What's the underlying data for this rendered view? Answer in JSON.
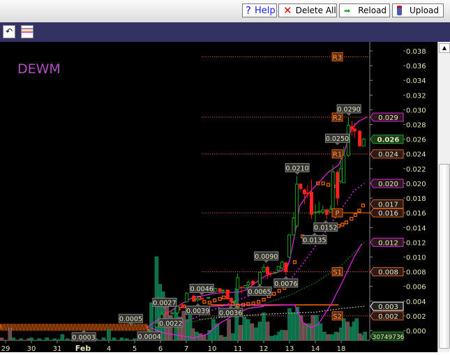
{
  "toolbar": {
    "help_label": "Help",
    "delete_all_label": "Delete All",
    "reload_label": "Reload",
    "upload_label": "Upload"
  },
  "chart_data": {
    "type": "candlestick",
    "symbol": "DEWM",
    "ylim": [
      0,
      0.039
    ],
    "y_ticks": [
      "0.000",
      "0.002",
      "0.004",
      "0.006",
      "0.008",
      "0.010",
      "0.012",
      "0.014",
      "0.016",
      "0.018",
      "0.020",
      "0.022",
      "0.024",
      "0.026",
      "0.028",
      "0.030",
      "0.032",
      "0.034",
      "0.036",
      "0.038"
    ],
    "x_ticks": [
      "29",
      "30",
      "31",
      "Feb",
      "4",
      "5",
      "6",
      "7",
      "10",
      "11",
      "12",
      "13",
      "14",
      "18"
    ],
    "candles": [
      [
        5.85,
        0.0005,
        0.0012,
        0.0004,
        0.001
      ],
      [
        6.05,
        0.001,
        0.0026,
        0.0009,
        0.0022
      ],
      [
        6.25,
        0.0025,
        0.0027,
        0.0021,
        0.0023
      ],
      [
        6.45,
        0.0023,
        0.0027,
        0.0022,
        0.0024
      ],
      [
        6.65,
        0.0024,
        0.0034,
        0.0022,
        0.0033
      ],
      [
        6.85,
        0.0034,
        0.0036,
        0.003,
        0.0031
      ],
      [
        7.02,
        0.0039,
        0.0052,
        0.0038,
        0.0051
      ],
      [
        7.29,
        0.0047,
        0.0049,
        0.004,
        0.0041
      ],
      [
        7.44,
        0.0042,
        0.0046,
        0.0039,
        0.0044
      ],
      [
        7.61,
        0.0044,
        0.0045,
        0.0042,
        0.0043
      ],
      [
        7.86,
        0.0044,
        0.0046,
        0.0043,
        0.0045
      ],
      [
        8.13,
        0.0053,
        0.0058,
        0.005,
        0.0057
      ],
      [
        8.3,
        0.0057,
        0.0058,
        0.0052,
        0.0053
      ],
      [
        8.42,
        0.0054,
        0.0056,
        0.005,
        0.0055
      ],
      [
        8.6,
        0.0054,
        0.0056,
        0.0042,
        0.0043
      ],
      [
        8.74,
        0.0044,
        0.0045,
        0.0036,
        0.0039
      ],
      [
        8.87,
        0.0039,
        0.0041,
        0.0038,
        0.004
      ],
      [
        8.99,
        0.0056,
        0.0078,
        0.0055,
        0.0072
      ],
      [
        9.14,
        0.0059,
        0.006,
        0.005,
        0.0058
      ],
      [
        9.29,
        0.0058,
        0.0062,
        0.0056,
        0.0061
      ],
      [
        9.41,
        0.0062,
        0.0068,
        0.006,
        0.0066
      ],
      [
        9.58,
        0.0067,
        0.0069,
        0.0062,
        0.0063
      ],
      [
        9.85,
        0.0063,
        0.008,
        0.0062,
        0.0079
      ],
      [
        10.0,
        0.008,
        0.009,
        0.0079,
        0.0086
      ],
      [
        10.15,
        0.0086,
        0.0088,
        0.007,
        0.0077
      ],
      [
        10.27,
        0.0078,
        0.0079,
        0.0073,
        0.0077
      ],
      [
        10.44,
        0.0078,
        0.008,
        0.0077,
        0.0079
      ],
      [
        10.57,
        0.0082,
        0.0088,
        0.008,
        0.0087
      ],
      [
        10.71,
        0.0085,
        0.0095,
        0.0083,
        0.0093
      ],
      [
        10.86,
        0.0092,
        0.0093,
        0.0076,
        0.008
      ],
      [
        10.99,
        0.01,
        0.0131,
        0.0099,
        0.013
      ],
      [
        11.16,
        0.013,
        0.016,
        0.0129,
        0.0153
      ],
      [
        11.28,
        0.0142,
        0.021,
        0.014,
        0.0199
      ],
      [
        11.43,
        0.0199,
        0.02,
        0.019,
        0.0193
      ],
      [
        11.58,
        0.0191,
        0.0193,
        0.0172,
        0.0186
      ],
      [
        11.7,
        0.0187,
        0.0198,
        0.018,
        0.0186
      ],
      [
        11.85,
        0.0188,
        0.0205,
        0.0152,
        0.0158
      ],
      [
        12.0,
        0.016,
        0.0172,
        0.0135,
        0.0161
      ],
      [
        12.14,
        0.0161,
        0.0175,
        0.0158,
        0.0162
      ],
      [
        12.29,
        0.0161,
        0.017,
        0.0158,
        0.0164
      ],
      [
        12.44,
        0.0164,
        0.0165,
        0.0152,
        0.0158
      ],
      [
        12.59,
        0.0161,
        0.017,
        0.016,
        0.0165
      ],
      [
        12.68,
        0.0164,
        0.0225,
        0.0163,
        0.0216
      ],
      [
        12.86,
        0.0215,
        0.0218,
        0.017,
        0.018
      ],
      [
        12.98,
        0.0203,
        0.0232,
        0.02,
        0.022
      ],
      [
        13.1,
        0.0201,
        0.025,
        0.02,
        0.0238
      ],
      [
        13.28,
        0.0238,
        0.029,
        0.0236,
        0.0279
      ],
      [
        13.42,
        0.0277,
        0.0285,
        0.0265,
        0.0274
      ],
      [
        13.52,
        0.0274,
        0.0282,
        0.0262,
        0.0271
      ],
      [
        13.72,
        0.0271,
        0.0272,
        0.025,
        0.0251
      ],
      [
        13.87,
        0.0251,
        0.0262,
        0.025,
        0.026
      ]
    ],
    "volume_relative": [
      [
        -0.15,
        3,
        0
      ],
      [
        0.17,
        15,
        0
      ],
      [
        0.3,
        3,
        1
      ],
      [
        0.6,
        2,
        1
      ],
      [
        0.9,
        2,
        0
      ],
      [
        1.0,
        3,
        1
      ],
      [
        1.3,
        2,
        1
      ],
      [
        1.6,
        3,
        1
      ],
      [
        1.9,
        2,
        1
      ],
      [
        2.1,
        1,
        1
      ],
      [
        2.2,
        7,
        1
      ],
      [
        2.4,
        2,
        1
      ],
      [
        2.7,
        2,
        1
      ],
      [
        2.9,
        3,
        0
      ],
      [
        3.0,
        3,
        1
      ],
      [
        3.2,
        2,
        1
      ],
      [
        3.5,
        2,
        1
      ],
      [
        3.8,
        3,
        1
      ],
      [
        4.0,
        13,
        1
      ],
      [
        4.2,
        3,
        1
      ],
      [
        4.5,
        3,
        1
      ],
      [
        4.7,
        2,
        1
      ],
      [
        5.0,
        2,
        1
      ],
      [
        5.4,
        2,
        0
      ],
      [
        5.65,
        45,
        1
      ],
      [
        5.85,
        100,
        1
      ],
      [
        5.98,
        67,
        1
      ],
      [
        6.1,
        58,
        1
      ],
      [
        6.25,
        40,
        0
      ],
      [
        6.4,
        30,
        0
      ],
      [
        6.6,
        38,
        1
      ],
      [
        6.75,
        28,
        0
      ],
      [
        6.9,
        35,
        0
      ],
      [
        7.05,
        25,
        1
      ],
      [
        7.15,
        30,
        1
      ],
      [
        7.25,
        14,
        0
      ],
      [
        7.4,
        10,
        1
      ],
      [
        7.55,
        8,
        0
      ],
      [
        7.7,
        6,
        0
      ],
      [
        7.9,
        12,
        1
      ],
      [
        8.05,
        25,
        1
      ],
      [
        8.2,
        20,
        1
      ],
      [
        8.35,
        6,
        0
      ],
      [
        8.5,
        4,
        1
      ],
      [
        8.65,
        25,
        0
      ],
      [
        8.8,
        8,
        1
      ],
      [
        8.95,
        62,
        1
      ],
      [
        9.1,
        18,
        0
      ],
      [
        9.25,
        28,
        1
      ],
      [
        9.4,
        25,
        1
      ],
      [
        9.55,
        20,
        0
      ],
      [
        9.7,
        15,
        1
      ],
      [
        9.85,
        22,
        1
      ],
      [
        10.0,
        33,
        1
      ],
      [
        10.15,
        22,
        0
      ],
      [
        10.3,
        5,
        1
      ],
      [
        10.45,
        6,
        1
      ],
      [
        10.6,
        10,
        1
      ],
      [
        10.7,
        12,
        1
      ],
      [
        10.85,
        12,
        0
      ],
      [
        11.0,
        38,
        1
      ],
      [
        11.15,
        33,
        1
      ],
      [
        11.3,
        40,
        1
      ],
      [
        11.45,
        30,
        0
      ],
      [
        11.6,
        20,
        0
      ],
      [
        11.75,
        20,
        1
      ],
      [
        11.9,
        30,
        0
      ],
      [
        12.05,
        30,
        1
      ],
      [
        12.2,
        20,
        1
      ],
      [
        12.35,
        10,
        1
      ],
      [
        12.5,
        7,
        0
      ],
      [
        12.65,
        7,
        1
      ],
      [
        12.8,
        10,
        1
      ],
      [
        12.92,
        9,
        0
      ],
      [
        13.0,
        15,
        1
      ],
      [
        13.1,
        26,
        1
      ],
      [
        13.25,
        22,
        0
      ],
      [
        13.38,
        16,
        1
      ],
      [
        13.5,
        22,
        1
      ],
      [
        13.6,
        26,
        1
      ],
      [
        13.72,
        8,
        0
      ],
      [
        13.82,
        6,
        0
      ],
      [
        13.92,
        10,
        1
      ]
    ],
    "volume_label": "30749736",
    "upper_band": [
      [
        5.5,
        0.0005
      ],
      [
        6.2,
        0.0022
      ],
      [
        6.8,
        0.0036
      ],
      [
        7.3,
        0.0046
      ],
      [
        7.6,
        0.0047
      ],
      [
        8.0,
        0.005
      ],
      [
        8.5,
        0.0052
      ],
      [
        9.0,
        0.0052
      ],
      [
        9.3,
        0.0055
      ],
      [
        9.8,
        0.0068
      ],
      [
        10.1,
        0.0075
      ],
      [
        10.6,
        0.008
      ],
      [
        10.9,
        0.0085
      ],
      [
        11.0,
        0.0095
      ],
      [
        11.2,
        0.013
      ],
      [
        11.4,
        0.017
      ],
      [
        11.7,
        0.0185
      ],
      [
        12.1,
        0.02
      ],
      [
        12.5,
        0.0215
      ],
      [
        12.9,
        0.0225
      ],
      [
        13.1,
        0.024
      ],
      [
        13.4,
        0.0275
      ],
      [
        13.7,
        0.0285
      ],
      [
        14.0,
        0.029
      ]
    ],
    "lower_band": [
      [
        5.6,
        0.0004
      ],
      [
        6.1,
        -0.0003
      ],
      [
        6.8,
        -0.0007
      ],
      [
        7.3,
        -0.001
      ],
      [
        7.8,
        -0.0005
      ],
      [
        8.3,
        0.001
      ],
      [
        8.9,
        0.0022
      ],
      [
        9.4,
        0.003
      ],
      [
        10.0,
        0.0033
      ]
    ],
    "oscillator": [
      [
        7.2,
        0.0032
      ],
      [
        8.0,
        0.0033
      ],
      [
        9.0,
        0.0035
      ],
      [
        10.0,
        0.0034
      ],
      [
        11.2,
        0.0035
      ],
      [
        11.5,
        0.0012
      ],
      [
        11.8,
        0.0004
      ],
      [
        12.1,
        0.0008
      ],
      [
        12.6,
        0.0035
      ],
      [
        13.1,
        0.007
      ],
      [
        13.5,
        0.01
      ],
      [
        13.8,
        0.0118
      ]
    ],
    "middle_ma": [
      [
        6.5,
        0.0005
      ],
      [
        7.5,
        0.002
      ],
      [
        8.5,
        0.0035
      ],
      [
        9.5,
        0.0048
      ],
      [
        10.5,
        0.006
      ],
      [
        11.0,
        0.0068
      ],
      [
        11.5,
        0.009
      ],
      [
        12.0,
        0.0115
      ],
      [
        12.5,
        0.014
      ],
      [
        13.0,
        0.0165
      ],
      [
        13.5,
        0.019
      ],
      [
        13.9,
        0.02
      ]
    ],
    "green_ma": [
      [
        7.0,
        0.001
      ],
      [
        8.5,
        0.0022
      ],
      [
        10.0,
        0.0036
      ],
      [
        11.0,
        0.0048
      ],
      [
        12.0,
        0.0065
      ],
      [
        13.0,
        0.0088
      ],
      [
        13.9,
        0.012
      ]
    ],
    "white_ma": [
      [
        7.5,
        0.0015
      ],
      [
        9,
        0.002
      ],
      [
        10.5,
        0.0023
      ],
      [
        12,
        0.0025
      ],
      [
        13,
        0.003
      ],
      [
        13.9,
        0.0033
      ]
    ],
    "sar": [
      [
        6.7,
        0.003
      ],
      [
        6.9,
        0.0033
      ],
      [
        7.3,
        0.0042
      ],
      [
        7.5,
        0.0044
      ],
      [
        7.7,
        0.0039
      ],
      [
        7.9,
        0.0038
      ],
      [
        8.1,
        0.0041
      ],
      [
        8.3,
        0.0043
      ],
      [
        8.45,
        0.0045
      ],
      [
        8.6,
        0.0053
      ],
      [
        8.8,
        0.0036
      ],
      [
        9.0,
        0.0034
      ],
      [
        9.2,
        0.0035
      ],
      [
        9.4,
        0.0036
      ],
      [
        9.6,
        0.0037
      ],
      [
        9.8,
        0.0039
      ],
      [
        10.0,
        0.0042
      ],
      [
        10.2,
        0.0047
      ],
      [
        10.4,
        0.005
      ],
      [
        10.6,
        0.0054
      ],
      [
        10.8,
        0.0058
      ],
      [
        11.0,
        0.0066
      ],
      [
        11.2,
        0.0093
      ],
      [
        11.5,
        0.0128
      ],
      [
        11.85,
        0.0168
      ],
      [
        12.1,
        0.02
      ],
      [
        12.3,
        0.02
      ],
      [
        12.5,
        0.0198
      ],
      [
        12.7,
        0.0196
      ],
      [
        12.75,
        0.014
      ],
      [
        12.9,
        0.0142
      ],
      [
        13.05,
        0.0144
      ],
      [
        13.2,
        0.0147
      ],
      [
        13.4,
        0.0152
      ],
      [
        13.55,
        0.0157
      ],
      [
        13.7,
        0.0163
      ],
      [
        13.85,
        0.017
      ]
    ],
    "pivots": [
      {
        "label": "R3",
        "value": 0.0372
      },
      {
        "label": "R2",
        "value": 0.029
      },
      {
        "label": "R1",
        "value": 0.024
      },
      {
        "label": "P",
        "value": 0.016
      },
      {
        "label": "S1",
        "value": 0.008
      },
      {
        "label": "S2",
        "value": 0.002
      }
    ],
    "callouts": [
      {
        "text": "0.0290",
        "t": 13.3,
        "value": 0.029,
        "pos": "above"
      },
      {
        "text": "0.0250",
        "t": 12.85,
        "value": 0.025,
        "pos": "above"
      },
      {
        "text": "0.0210",
        "t": 11.3,
        "value": 0.021,
        "pos": "above"
      },
      {
        "text": "0.0152",
        "t": 12.4,
        "value": 0.0152,
        "pos": "below"
      },
      {
        "text": "0.0135",
        "t": 11.97,
        "value": 0.0135,
        "pos": "below"
      },
      {
        "text": "0.0090",
        "t": 10.1,
        "value": 0.009,
        "pos": "above"
      },
      {
        "text": "0.0076",
        "t": 10.86,
        "value": 0.0076,
        "pos": "below"
      },
      {
        "text": "0.0065",
        "t": 9.84,
        "value": 0.0065,
        "pos": "below"
      },
      {
        "text": "0.0046",
        "t": 7.6,
        "value": 0.0046,
        "pos": "above"
      },
      {
        "text": "0.0039",
        "t": 7.45,
        "value": 0.0039,
        "pos": "below"
      },
      {
        "text": "0.0036",
        "t": 8.72,
        "value": 0.0036,
        "pos": "below"
      },
      {
        "text": "0.0027",
        "t": 6.16,
        "value": 0.0027,
        "pos": "above"
      },
      {
        "text": "0.0022",
        "t": 6.4,
        "value": 0.0022,
        "pos": "below"
      },
      {
        "text": "0.0005",
        "t": 4.85,
        "value": 0.0005,
        "pos": "above"
      },
      {
        "text": "0.0004",
        "t": 5.57,
        "value": 0.0004,
        "pos": "below"
      },
      {
        "text": "0.0003",
        "t": 3.03,
        "value": 0.0003,
        "pos": "below"
      }
    ],
    "price_tags": [
      {
        "text": "0.029",
        "value": 0.029,
        "color": "#e020e0"
      },
      {
        "text": "0.026",
        "value": 0.026,
        "color": "#20a020",
        "bold": true
      },
      {
        "text": "0.024",
        "value": 0.024,
        "color": "#e06010"
      },
      {
        "text": "0.020",
        "value": 0.02,
        "color": "#e020e0"
      },
      {
        "text": "0.017",
        "value": 0.0172,
        "color": "#e06010"
      },
      {
        "text": "0.016",
        "value": 0.016,
        "color": "#e06010"
      },
      {
        "text": "0.012",
        "value": 0.012,
        "color": "#e020e0"
      },
      {
        "text": "0.008",
        "value": 0.008,
        "color": "#e06010"
      },
      {
        "text": "0.003",
        "value": 0.0033,
        "color": "#ffffff"
      },
      {
        "text": "0.002",
        "value": 0.002,
        "color": "#e06010"
      }
    ],
    "support_line": 0.0035,
    "colors": {
      "up": "#1ea01e",
      "down": "#ff2020",
      "band": "#e020e0",
      "pivot": "#ff7a1a",
      "vol_up": "#0f6e4a",
      "vol_down": "#6e4a4a",
      "axis_text": "#e6e6b0"
    }
  }
}
